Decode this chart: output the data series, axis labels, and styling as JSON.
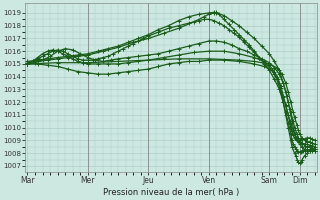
{
  "xlabel": "Pression niveau de la mer( hPa )",
  "bg_color": "#cce8e0",
  "grid_color": "#aacfc8",
  "line_color": "#1a5c1a",
  "ylim": [
    1006.5,
    1019.8
  ],
  "yticks": [
    1007,
    1008,
    1009,
    1010,
    1011,
    1012,
    1013,
    1014,
    1015,
    1016,
    1017,
    1018,
    1019
  ],
  "day_labels": [
    "Mar",
    "Mer",
    "Jeu",
    "Ven",
    "Sam",
    "Dim"
  ],
  "day_positions": [
    0,
    48,
    96,
    144,
    192,
    216
  ],
  "xlim": [
    -2,
    230
  ],
  "lines": [
    {
      "points": [
        [
          0,
          1015.2
        ],
        [
          8,
          1015.3
        ],
        [
          16,
          1015.4
        ],
        [
          24,
          1015.5
        ],
        [
          32,
          1015.6
        ],
        [
          40,
          1015.7
        ],
        [
          48,
          1015.8
        ],
        [
          56,
          1016.0
        ],
        [
          64,
          1016.2
        ],
        [
          72,
          1016.4
        ],
        [
          80,
          1016.7
        ],
        [
          88,
          1017.0
        ],
        [
          96,
          1017.3
        ],
        [
          104,
          1017.7
        ],
        [
          112,
          1018.0
        ],
        [
          120,
          1018.4
        ],
        [
          128,
          1018.7
        ],
        [
          136,
          1018.9
        ],
        [
          144,
          1019.0
        ],
        [
          148,
          1019.05
        ],
        [
          150,
          1019.0
        ],
        [
          156,
          1018.8
        ],
        [
          162,
          1018.4
        ],
        [
          168,
          1018.0
        ],
        [
          174,
          1017.5
        ],
        [
          180,
          1017.0
        ],
        [
          186,
          1016.4
        ],
        [
          192,
          1015.8
        ],
        [
          196,
          1015.2
        ],
        [
          200,
          1014.5
        ],
        [
          203,
          1013.5
        ],
        [
          206,
          1012.5
        ],
        [
          208,
          1011.5
        ],
        [
          210,
          1010.5
        ],
        [
          212,
          1009.5
        ],
        [
          214,
          1009.0
        ],
        [
          216,
          1008.7
        ],
        [
          218,
          1008.5
        ],
        [
          220,
          1008.3
        ],
        [
          222,
          1008.2
        ],
        [
          224,
          1008.3
        ],
        [
          226,
          1008.4
        ],
        [
          228,
          1008.3
        ]
      ]
    },
    {
      "points": [
        [
          0,
          1015.1
        ],
        [
          8,
          1015.2
        ],
        [
          16,
          1015.3
        ],
        [
          24,
          1015.4
        ],
        [
          32,
          1015.5
        ],
        [
          40,
          1015.6
        ],
        [
          48,
          1015.7
        ],
        [
          60,
          1016.0
        ],
        [
          72,
          1016.3
        ],
        [
          84,
          1016.7
        ],
        [
          96,
          1017.0
        ],
        [
          108,
          1017.4
        ],
        [
          120,
          1017.8
        ],
        [
          132,
          1018.3
        ],
        [
          140,
          1018.7
        ],
        [
          144,
          1018.9
        ],
        [
          148,
          1019.0
        ],
        [
          150,
          1019.05
        ],
        [
          152,
          1018.9
        ],
        [
          156,
          1018.5
        ],
        [
          160,
          1018.1
        ],
        [
          164,
          1017.7
        ],
        [
          168,
          1017.3
        ],
        [
          172,
          1016.9
        ],
        [
          176,
          1016.5
        ],
        [
          180,
          1016.0
        ],
        [
          184,
          1015.5
        ],
        [
          188,
          1015.0
        ],
        [
          192,
          1014.5
        ],
        [
          196,
          1013.8
        ],
        [
          200,
          1013.0
        ],
        [
          203,
          1012.0
        ],
        [
          205,
          1011.0
        ],
        [
          207,
          1010.0
        ],
        [
          209,
          1009.0
        ],
        [
          210,
          1008.5
        ],
        [
          212,
          1008.0
        ],
        [
          213,
          1007.8
        ],
        [
          214,
          1007.5
        ],
        [
          215,
          1007.3
        ],
        [
          216,
          1007.2
        ],
        [
          217,
          1007.3
        ],
        [
          218,
          1007.5
        ],
        [
          220,
          1007.8
        ],
        [
          222,
          1008.0
        ],
        [
          224,
          1008.2
        ],
        [
          226,
          1008.3
        ],
        [
          228,
          1008.2
        ]
      ]
    },
    {
      "points": [
        [
          0,
          1015.0
        ],
        [
          6,
          1015.1
        ],
        [
          12,
          1015.3
        ],
        [
          18,
          1015.6
        ],
        [
          24,
          1016.0
        ],
        [
          30,
          1016.2
        ],
        [
          36,
          1016.1
        ],
        [
          42,
          1015.8
        ],
        [
          48,
          1015.5
        ],
        [
          54,
          1015.3
        ],
        [
          60,
          1015.2
        ],
        [
          66,
          1015.3
        ],
        [
          72,
          1015.4
        ],
        [
          80,
          1015.5
        ],
        [
          88,
          1015.6
        ],
        [
          96,
          1015.7
        ],
        [
          104,
          1015.8
        ],
        [
          112,
          1016.0
        ],
        [
          120,
          1016.2
        ],
        [
          128,
          1016.4
        ],
        [
          136,
          1016.6
        ],
        [
          144,
          1016.8
        ],
        [
          150,
          1016.8
        ],
        [
          156,
          1016.7
        ],
        [
          162,
          1016.5
        ],
        [
          168,
          1016.2
        ],
        [
          174,
          1016.0
        ],
        [
          180,
          1015.7
        ],
        [
          186,
          1015.4
        ],
        [
          192,
          1015.1
        ],
        [
          196,
          1014.7
        ],
        [
          200,
          1014.2
        ],
        [
          203,
          1013.5
        ],
        [
          205,
          1012.8
        ],
        [
          207,
          1012.0
        ],
        [
          209,
          1011.2
        ],
        [
          211,
          1010.5
        ],
        [
          212,
          1010.0
        ],
        [
          214,
          1009.5
        ],
        [
          215,
          1009.2
        ],
        [
          216,
          1009.0
        ],
        [
          218,
          1008.8
        ],
        [
          220,
          1008.6
        ],
        [
          222,
          1008.5
        ],
        [
          224,
          1008.5
        ],
        [
          226,
          1008.4
        ],
        [
          228,
          1008.3
        ]
      ]
    },
    {
      "points": [
        [
          0,
          1015.0
        ],
        [
          24,
          1015.1
        ],
        [
          48,
          1015.1
        ],
        [
          72,
          1015.2
        ],
        [
          96,
          1015.3
        ],
        [
          120,
          1015.4
        ],
        [
          144,
          1015.4
        ],
        [
          168,
          1015.3
        ],
        [
          180,
          1015.2
        ],
        [
          192,
          1015.0
        ],
        [
          198,
          1014.7
        ],
        [
          202,
          1014.2
        ],
        [
          205,
          1013.5
        ],
        [
          207,
          1012.8
        ],
        [
          209,
          1012.0
        ],
        [
          211,
          1011.2
        ],
        [
          212,
          1010.8
        ],
        [
          214,
          1010.2
        ],
        [
          215,
          1009.8
        ],
        [
          216,
          1009.5
        ],
        [
          218,
          1009.2
        ],
        [
          220,
          1009.0
        ],
        [
          222,
          1008.9
        ],
        [
          224,
          1008.9
        ],
        [
          226,
          1008.8
        ],
        [
          228,
          1008.7
        ]
      ]
    },
    {
      "points": [
        [
          0,
          1015.0
        ],
        [
          8,
          1015.0
        ],
        [
          16,
          1014.9
        ],
        [
          24,
          1014.8
        ],
        [
          32,
          1014.6
        ],
        [
          40,
          1014.4
        ],
        [
          48,
          1014.3
        ],
        [
          56,
          1014.2
        ],
        [
          64,
          1014.2
        ],
        [
          72,
          1014.3
        ],
        [
          80,
          1014.4
        ],
        [
          88,
          1014.5
        ],
        [
          96,
          1014.6
        ],
        [
          104,
          1014.8
        ],
        [
          112,
          1015.0
        ],
        [
          120,
          1015.1
        ],
        [
          128,
          1015.2
        ],
        [
          136,
          1015.2
        ],
        [
          144,
          1015.3
        ],
        [
          156,
          1015.3
        ],
        [
          168,
          1015.2
        ],
        [
          180,
          1015.0
        ],
        [
          188,
          1014.8
        ],
        [
          194,
          1014.5
        ],
        [
          198,
          1014.0
        ],
        [
          201,
          1013.3
        ],
        [
          203,
          1012.5
        ],
        [
          205,
          1011.8
        ],
        [
          207,
          1011.0
        ],
        [
          209,
          1010.3
        ],
        [
          211,
          1009.8
        ],
        [
          212,
          1009.5
        ],
        [
          214,
          1009.2
        ],
        [
          215,
          1009.0
        ],
        [
          216,
          1008.9
        ],
        [
          218,
          1008.8
        ],
        [
          220,
          1008.7
        ],
        [
          222,
          1008.7
        ],
        [
          224,
          1008.6
        ],
        [
          226,
          1008.6
        ],
        [
          228,
          1008.5
        ]
      ]
    },
    {
      "points": [
        [
          0,
          1015.1
        ],
        [
          4,
          1015.2
        ],
        [
          8,
          1015.4
        ],
        [
          12,
          1015.6
        ],
        [
          16,
          1015.8
        ],
        [
          20,
          1016.0
        ],
        [
          24,
          1016.1
        ],
        [
          28,
          1016.0
        ],
        [
          32,
          1015.8
        ],
        [
          36,
          1015.6
        ],
        [
          40,
          1015.4
        ],
        [
          44,
          1015.3
        ],
        [
          48,
          1015.3
        ],
        [
          52,
          1015.3
        ],
        [
          56,
          1015.4
        ],
        [
          60,
          1015.5
        ],
        [
          64,
          1015.6
        ],
        [
          68,
          1015.8
        ],
        [
          72,
          1016.0
        ],
        [
          76,
          1016.2
        ],
        [
          80,
          1016.4
        ],
        [
          84,
          1016.6
        ],
        [
          88,
          1016.8
        ],
        [
          92,
          1017.0
        ],
        [
          96,
          1017.2
        ],
        [
          104,
          1017.5
        ],
        [
          112,
          1017.8
        ],
        [
          120,
          1018.0
        ],
        [
          128,
          1018.2
        ],
        [
          136,
          1018.4
        ],
        [
          140,
          1018.5
        ],
        [
          144,
          1018.5
        ],
        [
          148,
          1018.4
        ],
        [
          152,
          1018.2
        ],
        [
          156,
          1018.0
        ],
        [
          160,
          1017.7
        ],
        [
          164,
          1017.4
        ],
        [
          168,
          1017.1
        ],
        [
          172,
          1016.7
        ],
        [
          176,
          1016.3
        ],
        [
          180,
          1015.9
        ],
        [
          184,
          1015.5
        ],
        [
          188,
          1015.1
        ],
        [
          192,
          1014.7
        ],
        [
          196,
          1014.2
        ],
        [
          199,
          1013.5
        ],
        [
          201,
          1012.8
        ],
        [
          203,
          1012.0
        ],
        [
          205,
          1011.2
        ],
        [
          207,
          1010.4
        ],
        [
          208,
          1010.0
        ],
        [
          209,
          1009.5
        ],
        [
          210,
          1009.0
        ],
        [
          211,
          1008.7
        ],
        [
          212,
          1008.5
        ],
        [
          213,
          1008.3
        ],
        [
          214,
          1008.2
        ],
        [
          215,
          1008.1
        ],
        [
          216,
          1008.1
        ],
        [
          217,
          1008.1
        ],
        [
          218,
          1008.2
        ],
        [
          219,
          1008.2
        ],
        [
          220,
          1008.2
        ],
        [
          222,
          1008.3
        ],
        [
          224,
          1008.2
        ],
        [
          226,
          1008.2
        ],
        [
          228,
          1008.2
        ]
      ]
    },
    {
      "points": [
        [
          0,
          1015.0
        ],
        [
          4,
          1015.2
        ],
        [
          8,
          1015.5
        ],
        [
          12,
          1015.8
        ],
        [
          16,
          1016.0
        ],
        [
          20,
          1016.1
        ],
        [
          24,
          1016.0
        ],
        [
          28,
          1015.8
        ],
        [
          32,
          1015.6
        ],
        [
          36,
          1015.4
        ],
        [
          40,
          1015.2
        ],
        [
          44,
          1015.1
        ],
        [
          48,
          1015.0
        ],
        [
          56,
          1015.0
        ],
        [
          64,
          1015.0
        ],
        [
          72,
          1015.0
        ],
        [
          80,
          1015.1
        ],
        [
          88,
          1015.2
        ],
        [
          96,
          1015.3
        ],
        [
          108,
          1015.5
        ],
        [
          120,
          1015.7
        ],
        [
          132,
          1015.9
        ],
        [
          144,
          1016.0
        ],
        [
          156,
          1016.0
        ],
        [
          168,
          1015.8
        ],
        [
          180,
          1015.5
        ],
        [
          188,
          1015.2
        ],
        [
          192,
          1014.9
        ],
        [
          196,
          1014.4
        ],
        [
          199,
          1013.8
        ],
        [
          201,
          1013.1
        ],
        [
          203,
          1012.4
        ],
        [
          205,
          1011.7
        ],
        [
          207,
          1011.0
        ],
        [
          208,
          1010.5
        ],
        [
          209,
          1010.0
        ],
        [
          210,
          1009.7
        ],
        [
          211,
          1009.4
        ],
        [
          212,
          1009.2
        ],
        [
          213,
          1009.1
        ],
        [
          214,
          1009.0
        ],
        [
          215,
          1009.0
        ],
        [
          216,
          1009.0
        ],
        [
          218,
          1009.1
        ],
        [
          220,
          1009.1
        ],
        [
          222,
          1009.2
        ],
        [
          224,
          1009.2
        ],
        [
          226,
          1009.1
        ],
        [
          228,
          1009.0
        ]
      ]
    }
  ],
  "marker": "+",
  "marker_size": 2.5,
  "line_width": 0.9
}
